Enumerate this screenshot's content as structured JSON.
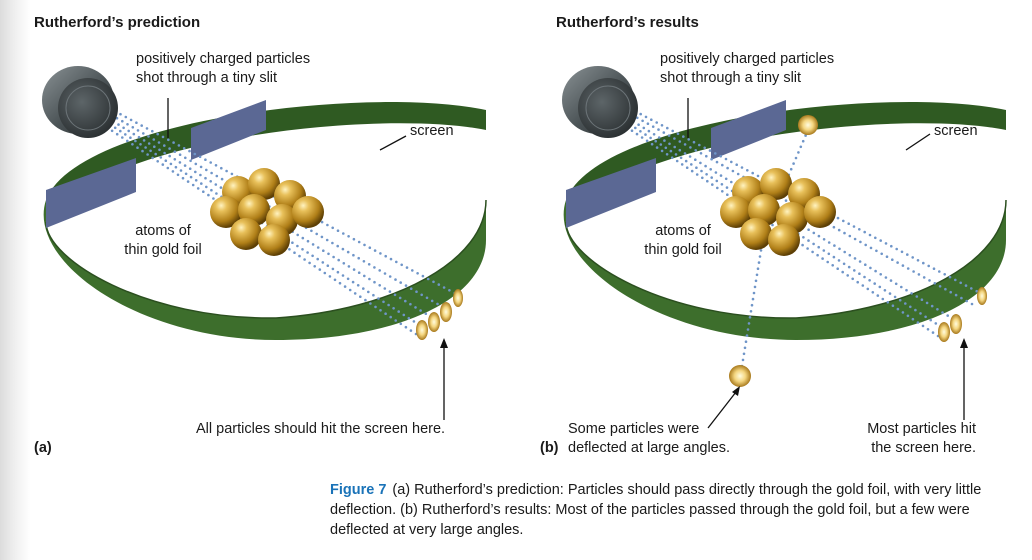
{
  "panel_a": {
    "title": "Rutherford’s prediction",
    "label_particles": [
      "positively charged particles",
      "shot through a tiny slit"
    ],
    "label_screen": "screen",
    "label_atoms": [
      "atoms of",
      "thin gold foil"
    ],
    "label_hit": "All particles should hit the screen here.",
    "panel_label": "(a)"
  },
  "panel_b": {
    "title": "Rutherford’s results",
    "label_particles": [
      "positively charged particles",
      "shot through a tiny slit"
    ],
    "label_screen": "screen",
    "label_atoms": [
      "atoms of",
      "thin gold foil"
    ],
    "label_deflected": [
      "Some particles were",
      "deflected at large angles."
    ],
    "label_most": [
      "Most particles hit",
      "the screen here."
    ],
    "panel_label": "(b)"
  },
  "caption": {
    "figure_label": "Figure 7",
    "text": "(a) Rutherford’s prediction: Particles should pass directly through the gold foil, with very little deflection. (b) Rutherford’s results: Most of the particles passed through the gold foil, but a few were deflected at very large angles."
  },
  "colors": {
    "ring": "#3a6a2a",
    "slit": "#5b6894",
    "gold": "#d4a02c",
    "beam": "#6f95c8",
    "source": "#4d5558",
    "caption_label": "#1a73b8"
  }
}
